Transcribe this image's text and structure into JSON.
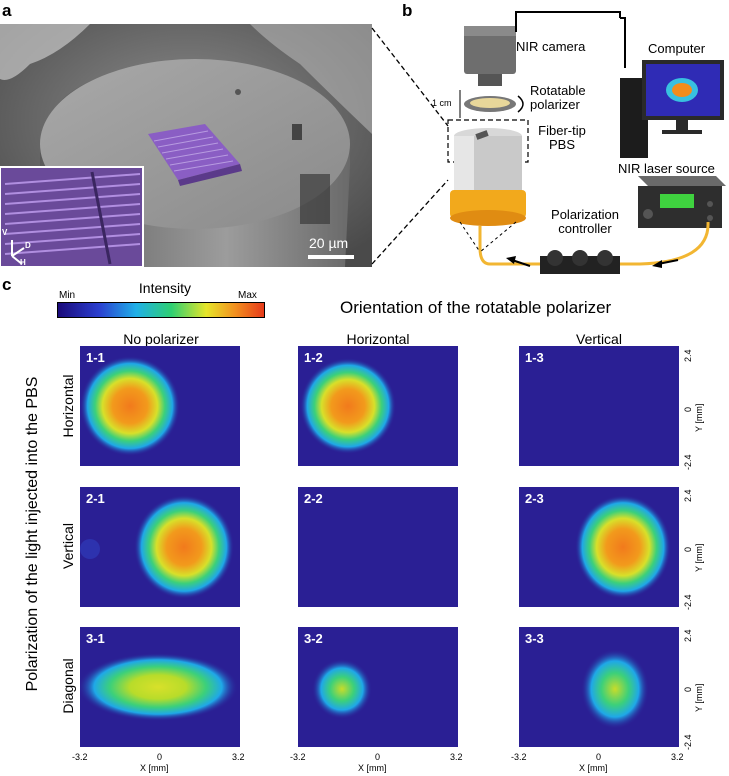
{
  "panel_letters": {
    "a": "a",
    "b": "b",
    "c": "c"
  },
  "sem": {
    "scale_bar": "20 µm",
    "axes": {
      "v": "V",
      "d": "D",
      "h": "H"
    }
  },
  "setup": {
    "nir_camera": "NIR camera",
    "rotatable_polarizer": "Rotatable polarizer",
    "one_cm": "1 cm",
    "fiber_tip_pbs": "Fiber-tip PBS",
    "computer": "Computer",
    "nir_laser_source": "NIR laser source",
    "polarization_controller": "Polarization controller"
  },
  "colorbar": {
    "title": "Intensity",
    "min": "Min",
    "max": "Max"
  },
  "grid": {
    "title": "Orientation of the rotatable polarizer",
    "row_axis_title": "Polarization of the light injected into the PBS",
    "columns": [
      "No polarizer",
      "Horizontal",
      "Vertical"
    ],
    "rows": [
      "Horizontal",
      "Vertical",
      "Diagonal"
    ],
    "panels": [
      {
        "id": "1-1",
        "spot": "strong",
        "position": "left"
      },
      {
        "id": "1-2",
        "spot": "strong",
        "position": "left"
      },
      {
        "id": "1-3",
        "spot": "none"
      },
      {
        "id": "2-1",
        "spot": "strong",
        "position": "right"
      },
      {
        "id": "2-2",
        "spot": "none"
      },
      {
        "id": "2-3",
        "spot": "strong",
        "position": "right"
      },
      {
        "id": "3-1",
        "spot": "elongated",
        "position": "center"
      },
      {
        "id": "3-2",
        "spot": "weak",
        "position": "left"
      },
      {
        "id": "3-3",
        "spot": "weak",
        "position": "right"
      }
    ],
    "x_axis": {
      "label": "X [mm]",
      "ticks": [
        "-3.2",
        "0",
        "3.2"
      ]
    },
    "y_axis": {
      "label": "Y [mm]",
      "ticks": [
        "2.4",
        "0",
        "-2.4"
      ]
    }
  },
  "colors": {
    "background_blue": "#2a1f94",
    "polarizer_controller": "#222222",
    "laser_fiber": "#f2b632",
    "screen_text": "#3fd23f"
  }
}
